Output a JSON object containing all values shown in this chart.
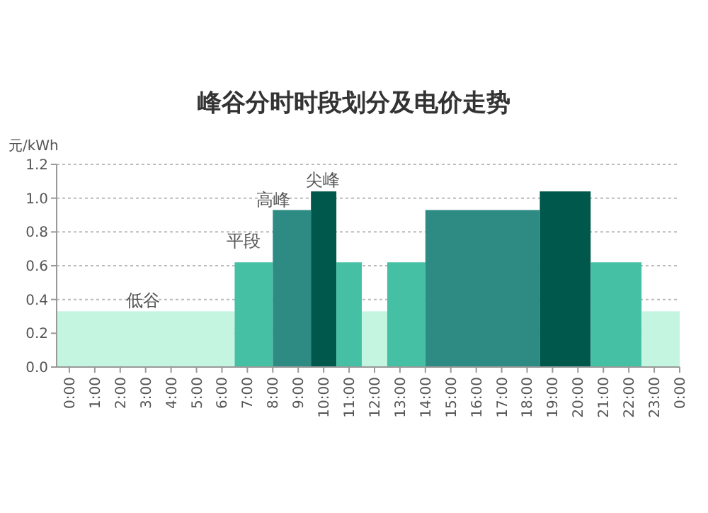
{
  "chart_data": {
    "type": "histogram",
    "title": "峰谷分时时段划分及电价走势",
    "ylabel": "元/kWh",
    "bins": [
      -0.5,
      6.5,
      8,
      9.5,
      10.5,
      11.5,
      12.5,
      14,
      18.5,
      20.5,
      22.5,
      24
    ],
    "values": [
      0.33,
      0.62,
      0.93,
      1.04,
      0.62,
      0.33,
      0.62,
      0.93,
      1.04,
      0.62,
      0.33
    ],
    "colors": [
      "#c4f5e0",
      "#46c0a4",
      "#2e8b84",
      "#00574b",
      "#46c0a4",
      "#c4f5e0",
      "#46c0a4",
      "#2e8b84",
      "#00574b",
      "#46c0a4",
      "#c4f5e0"
    ],
    "xlim": [
      -0.5,
      24
    ],
    "xticks": [
      {
        "value": 0,
        "label": "0:00"
      },
      {
        "value": 1,
        "label": "1:00"
      },
      {
        "value": 2,
        "label": "2:00"
      },
      {
        "value": 3,
        "label": "3:00"
      },
      {
        "value": 4,
        "label": "4:00"
      },
      {
        "value": 5,
        "label": "5:00"
      },
      {
        "value": 6,
        "label": "6:00"
      },
      {
        "value": 7,
        "label": "7:00"
      },
      {
        "value": 8,
        "label": "8:00"
      },
      {
        "value": 9,
        "label": "9:00"
      },
      {
        "value": 10,
        "label": "10:00"
      },
      {
        "value": 11,
        "label": "11:00"
      },
      {
        "value": 12,
        "label": "12:00"
      },
      {
        "value": 13,
        "label": "13:00"
      },
      {
        "value": 14,
        "label": "14:00"
      },
      {
        "value": 15,
        "label": "15:00"
      },
      {
        "value": 16,
        "label": "16:00"
      },
      {
        "value": 17,
        "label": "17:00"
      },
      {
        "value": 18,
        "label": "18:00"
      },
      {
        "value": 19,
        "label": "19:00"
      },
      {
        "value": 20,
        "label": "20:00"
      },
      {
        "value": 21,
        "label": "21:00"
      },
      {
        "value": 22,
        "label": "22:00"
      },
      {
        "value": 23,
        "label": "23:00"
      },
      {
        "value": 24,
        "label": "0:00"
      }
    ],
    "ylim": [
      0,
      1.2
    ],
    "yticks": [
      {
        "value": 0,
        "label": "0.0"
      },
      {
        "value": 0.2,
        "label": "0.2"
      },
      {
        "value": 0.4,
        "label": "0.4"
      },
      {
        "value": 0.6,
        "label": "0.6"
      },
      {
        "value": 0.8,
        "label": "0.8"
      },
      {
        "value": 1,
        "label": "1.0"
      },
      {
        "value": 1.2,
        "label": "1.2"
      }
    ],
    "grid": "y",
    "annotations": [
      "低谷",
      "平段",
      "高峰",
      "尖峰"
    ]
  }
}
